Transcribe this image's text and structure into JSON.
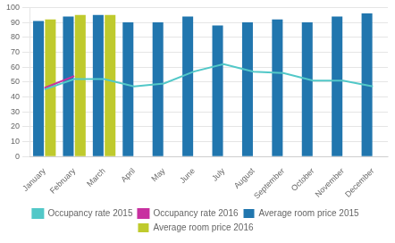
{
  "chart_data": {
    "type": "bar",
    "categories": [
      "January",
      "February",
      "March",
      "April",
      "May",
      "June",
      "July",
      "August",
      "September",
      "October",
      "November",
      "December"
    ],
    "series": [
      {
        "name": "Average room price 2015",
        "type": "bar",
        "color": "#2176AE",
        "values": [
          91,
          94,
          95,
          90,
          90,
          94,
          88,
          90,
          92,
          90,
          94,
          96
        ]
      },
      {
        "name": "Average room price 2016",
        "type": "bar",
        "color": "#BFCA2D",
        "values": [
          92,
          95,
          95,
          null,
          null,
          null,
          null,
          null,
          null,
          null,
          null,
          null
        ]
      },
      {
        "name": "Occupancy rate 2015",
        "type": "line",
        "color": "#52C8C8",
        "values": [
          45,
          52,
          52,
          47,
          49,
          57,
          62,
          57,
          56,
          51,
          51,
          47
        ]
      },
      {
        "name": "Occupancy rate 2016",
        "type": "line",
        "color": "#C830A0",
        "values": [
          46,
          54,
          null,
          null,
          null,
          null,
          null,
          null,
          null,
          null,
          null,
          null
        ]
      }
    ],
    "ylim": [
      0,
      100
    ],
    "yticks": [
      0,
      10,
      20,
      30,
      40,
      50,
      60,
      70,
      80,
      90,
      100
    ],
    "grid": true,
    "legend": "bottom"
  }
}
